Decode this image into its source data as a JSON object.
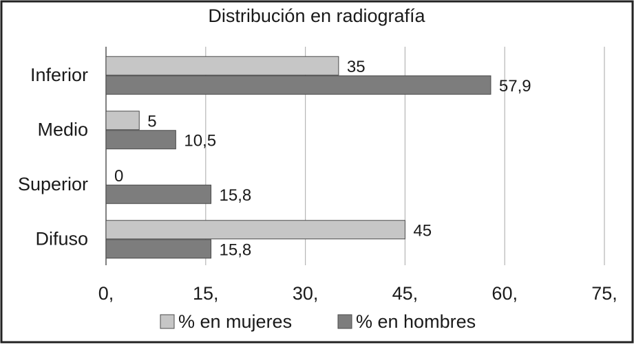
{
  "chart_data": {
    "type": "bar",
    "orientation": "horizontal",
    "title": "Distribución en radiografía",
    "categories": [
      "Inferior",
      "Medio",
      "Superior",
      "Difuso"
    ],
    "series": [
      {
        "name": "% en mujeres",
        "values": [
          35,
          5,
          0,
          45
        ],
        "labels": [
          "35",
          "5",
          "0",
          "45"
        ],
        "color": "#c6c6c6"
      },
      {
        "name": "% en hombres",
        "values": [
          57.9,
          10.5,
          15.8,
          15.8
        ],
        "labels": [
          "57,9",
          "10,5",
          "15,8",
          "15,8"
        ],
        "color": "#7d7d7d"
      }
    ],
    "xlim": [
      0,
      75
    ],
    "x_ticks": [
      0,
      15,
      30,
      45,
      60,
      75
    ],
    "x_tick_labels": [
      "0,",
      "15,",
      "30,",
      "45,",
      "60,",
      "75,"
    ],
    "grid": "vertical",
    "legend_position": "bottom"
  }
}
